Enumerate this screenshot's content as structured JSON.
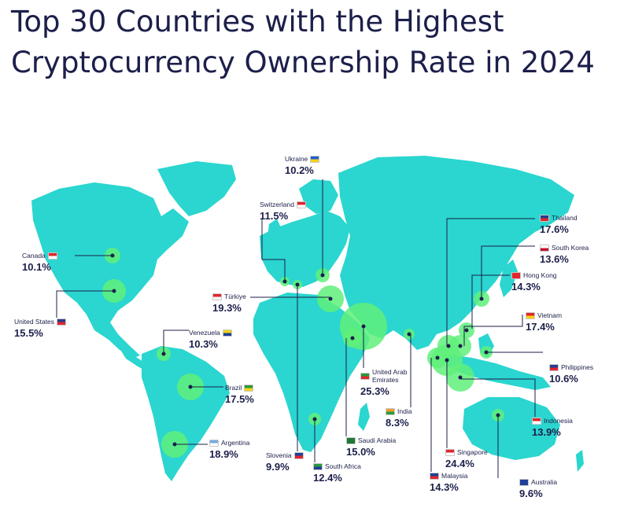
{
  "title": "Top 30 Countries with the Highest Cryptocurrency Ownership Rate in 2024",
  "colors": {
    "land": "#2ad6cf",
    "bubble": "#5ff07a",
    "text": "#1c1f4a",
    "line": "#1c1f4a"
  },
  "countries": [
    {
      "key": "ukraine",
      "name": "Ukraine",
      "value": "10.2%",
      "flag_colors": [
        "#1f5fd1",
        "#f7d116"
      ]
    },
    {
      "key": "switzerland",
      "name": "Switzerland",
      "value": "11.5%",
      "flag_colors": [
        "#e0262c",
        "#ffffff"
      ]
    },
    {
      "key": "canada",
      "name": "Canada",
      "value": "10.1%",
      "flag_colors": [
        "#e0262c",
        "#ffffff"
      ]
    },
    {
      "key": "united_states",
      "name": "United States",
      "value": "15.5%",
      "flag_colors": [
        "#2b3a8a",
        "#e0262c"
      ]
    },
    {
      "key": "turkiye",
      "name": "Türkiye",
      "value": "19.3%",
      "flag_colors": [
        "#e0262c",
        "#ffffff"
      ]
    },
    {
      "key": "venezuela",
      "name": "Venezuela",
      "value": "10.3%",
      "flag_colors": [
        "#f7d116",
        "#1f3f99"
      ]
    },
    {
      "key": "brazil",
      "name": "Brazil",
      "value": "17.5%",
      "flag_colors": [
        "#2a9a3d",
        "#f7d116"
      ]
    },
    {
      "key": "argentina",
      "name": "Argentina",
      "value": "18.9%",
      "flag_colors": [
        "#74acdf",
        "#ffffff"
      ]
    },
    {
      "key": "slovenia",
      "name": "Slovenia",
      "value": "9.9%",
      "flag_colors": [
        "#1f3f99",
        "#e0262c"
      ]
    },
    {
      "key": "south_africa",
      "name": "South Africa",
      "value": "12.4%",
      "flag_colors": [
        "#2a9a3d",
        "#1f3f99"
      ]
    },
    {
      "key": "saudi_arabia",
      "name": "Saudi Arabia",
      "value": "15.0%",
      "flag_colors": [
        "#1e7a35",
        "#1e7a35"
      ]
    },
    {
      "key": "uae",
      "name": "United Arab\nEmirates",
      "value": "25.3%",
      "flag_colors": [
        "#2a9a3d",
        "#e0262c"
      ]
    },
    {
      "key": "india",
      "name": "India",
      "value": "8.3%",
      "flag_colors": [
        "#f29a2e",
        "#2a9a3d"
      ]
    },
    {
      "key": "thailand",
      "name": "Thailand",
      "value": "17.6%",
      "flag_colors": [
        "#2b3a8a",
        "#e0262c"
      ]
    },
    {
      "key": "south_korea",
      "name": "South Korea",
      "value": "13.6%",
      "flag_colors": [
        "#ffffff",
        "#c8102e"
      ]
    },
    {
      "key": "hong_kong",
      "name": "Hong Kong",
      "value": "14.3%",
      "flag_colors": [
        "#e0262c",
        "#e0262c"
      ]
    },
    {
      "key": "vietnam",
      "name": "Vietnam",
      "value": "17.4%",
      "flag_colors": [
        "#e0262c",
        "#f7d116"
      ]
    },
    {
      "key": "philippines",
      "name": "Philippines",
      "value": "10.6%",
      "flag_colors": [
        "#1f3f99",
        "#e0262c"
      ]
    },
    {
      "key": "indonesia",
      "name": "Indonesia",
      "value": "13.9%",
      "flag_colors": [
        "#e0262c",
        "#ffffff"
      ]
    },
    {
      "key": "singapore",
      "name": "Singapore",
      "value": "24.4%",
      "flag_colors": [
        "#e0262c",
        "#ffffff"
      ]
    },
    {
      "key": "malaysia",
      "name": "Malaysia",
      "value": "14.3%",
      "flag_colors": [
        "#1f3f99",
        "#e0262c"
      ]
    },
    {
      "key": "australia",
      "name": "Australia",
      "value": "9.6%",
      "flag_colors": [
        "#1f3f99",
        "#1f3f99"
      ]
    }
  ]
}
